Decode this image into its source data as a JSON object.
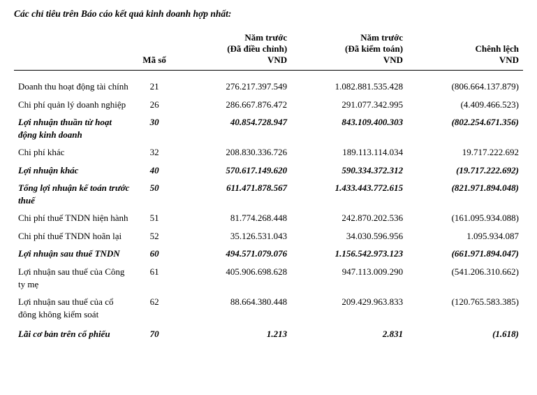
{
  "title": "Các chỉ tiêu trên Báo cáo kết quả kinh doanh hợp nhất:",
  "headers": {
    "label": "",
    "code": "Mã số",
    "col1_l1": "Năm trước",
    "col1_l2": "(Đã điều chỉnh)",
    "col1_l3": "VND",
    "col2_l1": "Năm trước",
    "col2_l2": "(Đã kiểm toán)",
    "col2_l3": "VND",
    "col3_l1": "Chênh lệch",
    "col3_l2": "VND"
  },
  "rows": [
    {
      "label": "Doanh thu hoạt động tài chính",
      "code": "21",
      "v1": "276.217.397.549",
      "v2": "1.082.881.535.428",
      "v3": "(806.664.137.879)",
      "bold": false
    },
    {
      "label": "Chi phí quản lý doanh nghiệp",
      "code": "26",
      "v1": "286.667.876.472",
      "v2": "291.077.342.995",
      "v3": "(4.409.466.523)",
      "bold": false
    },
    {
      "label": "Lợi nhuận thuần từ hoạt động kinh doanh",
      "code": "30",
      "v1": "40.854.728.947",
      "v2": "843.109.400.303",
      "v3": "(802.254.671.356)",
      "bold": true
    },
    {
      "label": "Chi phí khác",
      "code": "32",
      "v1": "208.830.336.726",
      "v2": "189.113.114.034",
      "v3": "19.717.222.692",
      "bold": false
    },
    {
      "label": "Lợi nhuận khác",
      "code": "40",
      "v1": "570.617.149.620",
      "v2": "590.334.372.312",
      "v3": "(19.717.222.692)",
      "bold": true
    },
    {
      "label": "Tổng lợi nhuận kế toán trước thuế",
      "code": "50",
      "v1": "611.471.878.567",
      "v2": "1.433.443.772.615",
      "v3": "(821.971.894.048)",
      "bold": true
    },
    {
      "label": "Chi phí thuế TNDN hiện hành",
      "code": "51",
      "v1": "81.774.268.448",
      "v2": "242.870.202.536",
      "v3": "(161.095.934.088)",
      "bold": false
    },
    {
      "label": "Chi phí thuế TNDN hoãn lại",
      "code": "52",
      "v1": "35.126.531.043",
      "v2": "34.030.596.956",
      "v3": "1.095.934.087",
      "bold": false
    },
    {
      "label": "Lợi nhuận sau thuế TNDN",
      "code": "60",
      "v1": "494.571.079.076",
      "v2": "1.156.542.973.123",
      "v3": "(661.971.894.047)",
      "bold": true
    },
    {
      "label": "Lợi nhuận sau thuế của Công ty mẹ",
      "code": "61",
      "v1": "405.906.698.628",
      "v2": "947.113.009.290",
      "v3": "(541.206.310.662)",
      "bold": false
    },
    {
      "label": "Lợi nhuận sau thuế của cổ đông không kiểm soát",
      "code": "62",
      "v1": "88.664.380.448",
      "v2": "209.429.963.833",
      "v3": "(120.765.583.385)",
      "bold": false
    },
    {
      "label": "Lãi cơ bản trên cổ phiếu",
      "code": "70",
      "v1": "1.213",
      "v2": "2.831",
      "v3": "(1.618)",
      "bold": true,
      "spacer": true
    }
  ]
}
